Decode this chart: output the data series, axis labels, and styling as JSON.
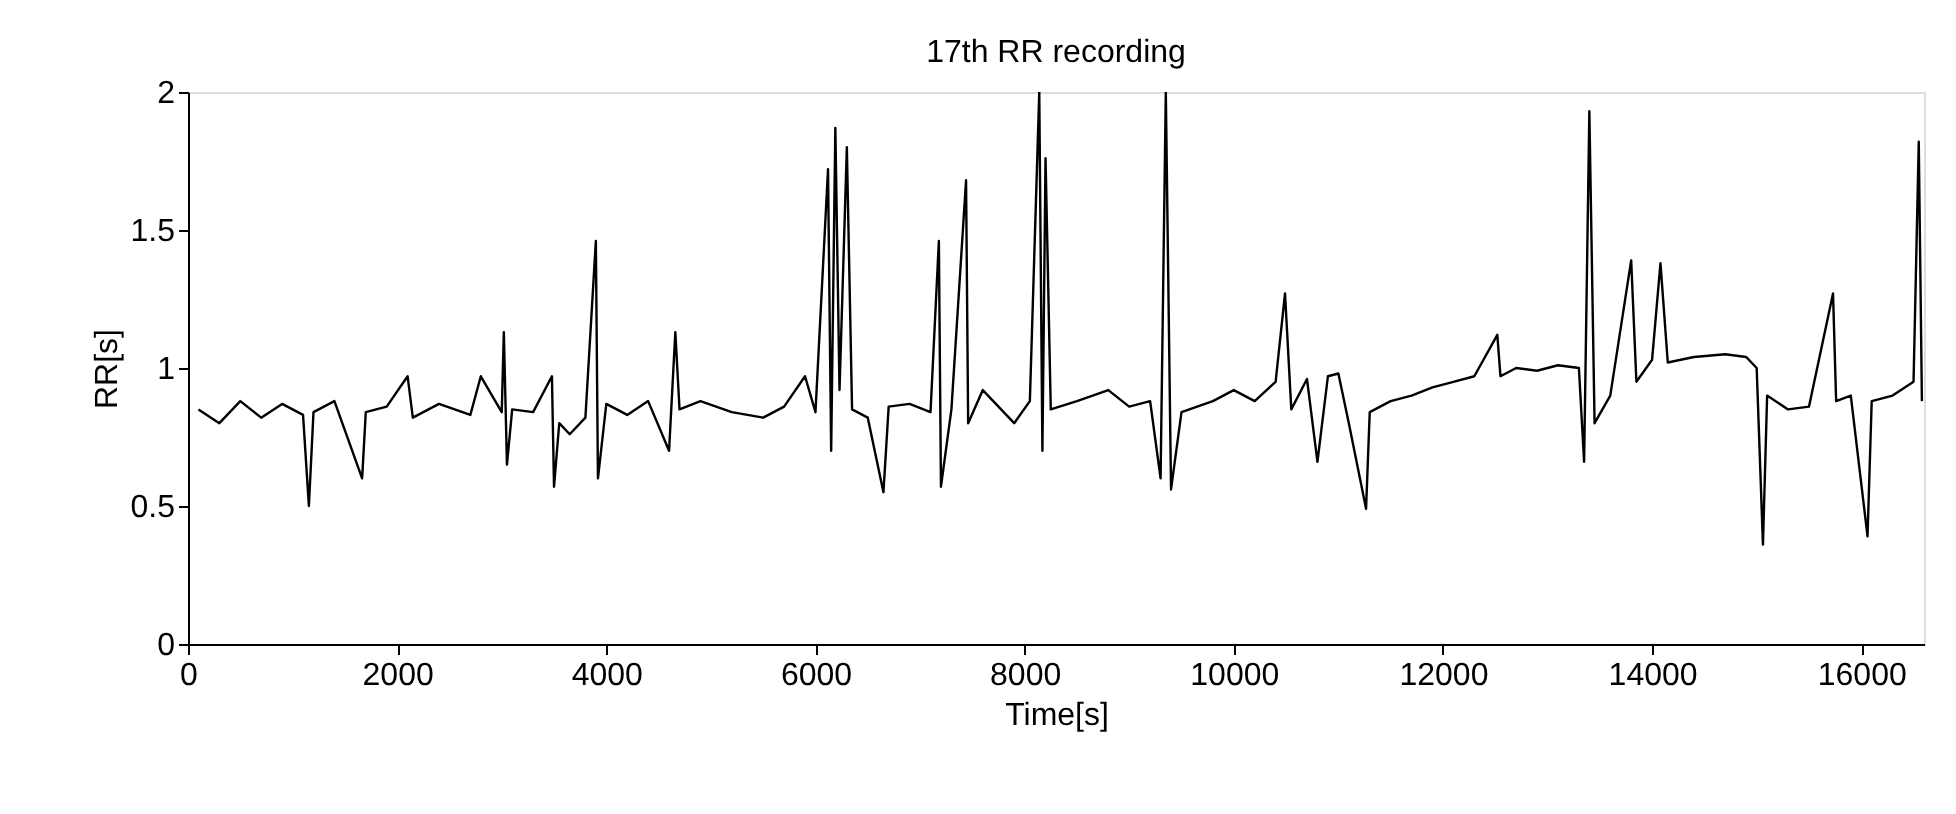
{
  "chart_data": {
    "type": "line",
    "title": "17th RR recording",
    "xlabel": "Time[s]",
    "ylabel": "RR[s]",
    "xlim": [
      0,
      16600
    ],
    "xticks": [
      0,
      2000,
      4000,
      6000,
      8000,
      10000,
      12000,
      14000,
      16000
    ],
    "ylim": [
      0,
      2
    ],
    "yticks": [
      0,
      0.5,
      1,
      1.5,
      2
    ],
    "grid": false,
    "marker": "none",
    "line_style": "solid",
    "series": [
      {
        "color": "#000000",
        "x": [
          100,
          300,
          500,
          700,
          900,
          1100,
          1156,
          1200,
          1400,
          1665,
          1700,
          1900,
          2100,
          2150,
          2400,
          2700,
          2800,
          3000,
          3020,
          3050,
          3100,
          3300,
          3480,
          3500,
          3550,
          3650,
          3800,
          3900,
          3920,
          4000,
          4200,
          4400,
          4600,
          4660,
          4700,
          4900,
          5200,
          5500,
          5700,
          5900,
          6000,
          6120,
          6150,
          6190,
          6230,
          6300,
          6350,
          6500,
          6650,
          6700,
          6900,
          7100,
          7180,
          7200,
          7300,
          7440,
          7460,
          7600,
          7800,
          7900,
          8050,
          8140,
          8170,
          8200,
          8250,
          8500,
          8800,
          9000,
          9200,
          9300,
          9350,
          9400,
          9500,
          9800,
          10000,
          10200,
          10400,
          10490,
          10550,
          10700,
          10800,
          10900,
          11000,
          11100,
          11265,
          11300,
          11500,
          11700,
          11900,
          12100,
          12300,
          12520,
          12550,
          12700,
          12900,
          13100,
          13300,
          13350,
          13400,
          13450,
          13600,
          13800,
          13850,
          14000,
          14080,
          14150,
          14400,
          14700,
          14900,
          15000,
          15060,
          15100,
          15300,
          15500,
          15730,
          15760,
          15900,
          16060,
          16100,
          16300,
          16500,
          16550,
          16580
        ],
        "values": [
          0.85,
          0.8,
          0.88,
          0.82,
          0.87,
          0.83,
          0.5,
          0.84,
          0.88,
          0.6,
          0.84,
          0.86,
          0.97,
          0.82,
          0.87,
          0.83,
          0.97,
          0.84,
          1.13,
          0.65,
          0.85,
          0.84,
          0.97,
          0.57,
          0.8,
          0.76,
          0.82,
          1.46,
          0.6,
          0.87,
          0.83,
          0.88,
          0.7,
          1.13,
          0.85,
          0.88,
          0.84,
          0.82,
          0.86,
          0.97,
          0.84,
          1.72,
          0.7,
          1.87,
          0.92,
          1.8,
          0.85,
          0.82,
          0.55,
          0.86,
          0.87,
          0.84,
          1.46,
          0.57,
          0.85,
          1.68,
          0.8,
          0.92,
          0.84,
          0.8,
          0.88,
          2.0,
          0.7,
          1.76,
          0.85,
          0.88,
          0.92,
          0.86,
          0.88,
          0.6,
          2.0,
          0.56,
          0.84,
          0.88,
          0.92,
          0.88,
          0.95,
          1.27,
          0.85,
          0.96,
          0.66,
          0.97,
          0.98,
          0.8,
          0.49,
          0.84,
          0.88,
          0.9,
          0.93,
          0.95,
          0.97,
          1.12,
          0.97,
          1.0,
          0.99,
          1.01,
          1.0,
          0.66,
          1.93,
          0.8,
          0.9,
          1.39,
          0.95,
          1.03,
          1.38,
          1.02,
          1.04,
          1.05,
          1.04,
          1.0,
          0.36,
          0.9,
          0.85,
          0.86,
          1.27,
          0.88,
          0.9,
          0.39,
          0.88,
          0.9,
          0.95,
          1.82,
          0.88
        ]
      }
    ]
  }
}
